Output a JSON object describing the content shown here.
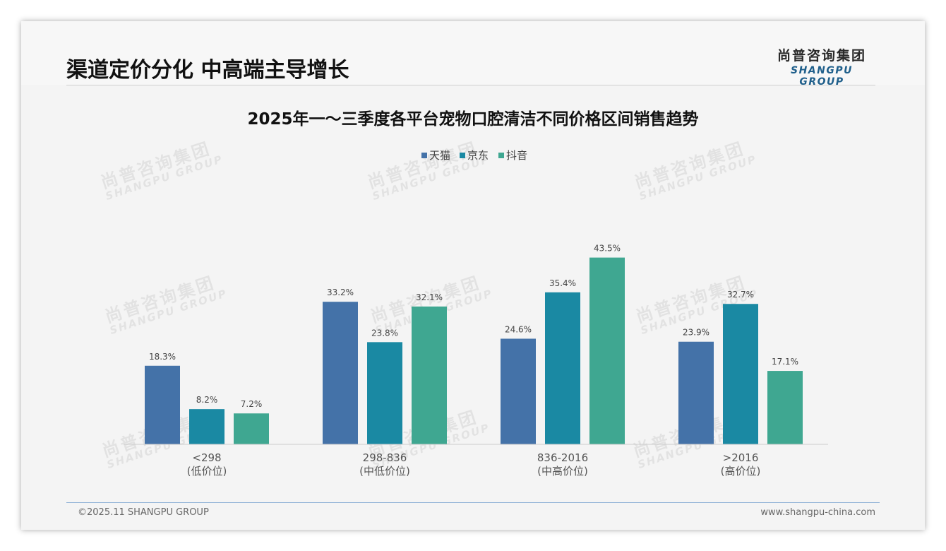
{
  "page": {
    "title": "渠道定价分化 中高端主导增长",
    "logo_cn": "尚普咨询集团",
    "logo_en": "SHANGPU GROUP",
    "footer_left": "©2025.11 SHANGPU GROUP",
    "footer_right": "www.shangpu-china.com",
    "watermark_cn": "尚普咨询集团",
    "watermark_en": "SHANGPU GROUP"
  },
  "chart_data": {
    "type": "bar",
    "title": "2025年一～三季度各平台宠物口腔清洁不同价格区间销售趋势",
    "categories": [
      "<298",
      "298-836",
      "836-2016",
      ">2016"
    ],
    "category_sublabels": [
      "(低价位)",
      "(中低价位)",
      "(中高价位)",
      "(高价位)"
    ],
    "series": [
      {
        "name": "天猫",
        "color": "#4472a8",
        "values": [
          18.3,
          33.2,
          24.6,
          23.9
        ]
      },
      {
        "name": "京东",
        "color": "#1a89a3",
        "values": [
          8.2,
          23.8,
          35.4,
          32.7
        ]
      },
      {
        "name": "抖音",
        "color": "#3fa791",
        "values": [
          7.2,
          32.1,
          43.5,
          17.1
        ]
      }
    ],
    "value_suffix": "%",
    "ylim": [
      0,
      50
    ],
    "grid": false,
    "legend_position": "top-center"
  }
}
